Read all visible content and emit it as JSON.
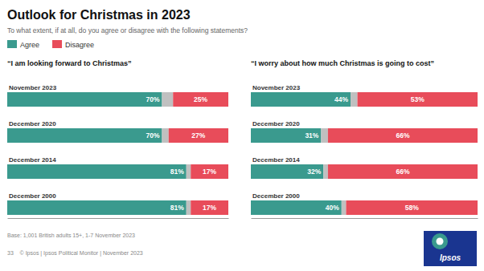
{
  "title": "Outlook for Christmas in 2023",
  "subtitle": "To what extent, if at all, do you agree or disagree with the following statements?",
  "annotations": [
    "Base: 1,001 British adults 15+, 1-7 November 2023",
    "33    © Ipsos | Ipsos Political Monitor | November 2023",
    "Ipsos"
  ],
  "chart_data": [
    {
      "type": "bar",
      "title": "“I am looking forward to Christmas”",
      "orientation": "horizontal",
      "stacked": true,
      "data_labels": true,
      "tick_labels": false,
      "legend": "top-left",
      "categories": [
        "November 2023",
        "December 2020",
        "December 2014",
        "December 2000"
      ],
      "xlim": [
        0,
        100
      ],
      "series": [
        {
          "name": "Agree",
          "color": "#3a9a8e",
          "values": [
            70,
            70,
            81,
            81
          ],
          "value_labels": [
            "70%",
            "70%",
            "81%",
            "81%"
          ]
        },
        {
          "color": "#c0c0c0",
          "values": [
            5,
            3,
            2,
            2
          ]
        },
        {
          "name": "Disagree",
          "color": "#e84c5a",
          "values": [
            25,
            27,
            17,
            17
          ],
          "value_labels": [
            "25%",
            "27%",
            "17%",
            "17%"
          ]
        }
      ]
    },
    {
      "type": "bar",
      "title": "“I worry about how much Christmas is going to cost”",
      "orientation": "horizontal",
      "stacked": true,
      "data_labels": true,
      "tick_labels": false,
      "categories": [
        "November 2023",
        "December 2020",
        "December 2014",
        "December 2000"
      ],
      "xlim": [
        0,
        100
      ],
      "series": [
        {
          "name": "Agree",
          "color": "#3a9a8e",
          "values": [
            44,
            31,
            32,
            40
          ],
          "value_labels": [
            "44%",
            "31%",
            "32%",
            "40%"
          ]
        },
        {
          "color": "#c0c0c0",
          "values": [
            3,
            3,
            2,
            2
          ]
        },
        {
          "name": "Disagree",
          "color": "#e84c5a",
          "values": [
            53,
            66,
            66,
            58
          ],
          "value_labels": [
            "53%",
            "66%",
            "66%",
            "58%"
          ]
        }
      ]
    }
  ]
}
